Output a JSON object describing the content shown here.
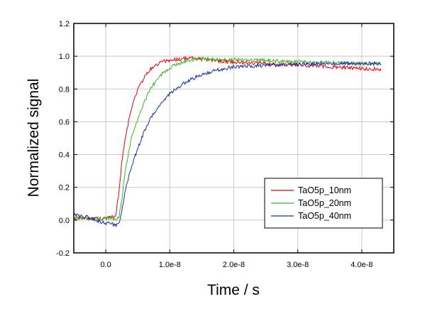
{
  "chart_data": {
    "type": "line",
    "xlabel": "Time / s",
    "ylabel": "Normalized signal",
    "xlim": [
      -5e-09,
      4.5e-08
    ],
    "ylim": [
      -0.2,
      1.2
    ],
    "xticks": [
      0,
      1e-08,
      2e-08,
      3e-08,
      4e-08
    ],
    "xtick_labels": [
      "0.0",
      "1.0e-8",
      "2.0e-8",
      "3.0e-8",
      "4.0e-8"
    ],
    "yticks": [
      -0.2,
      0.0,
      0.2,
      0.4,
      0.6,
      0.8,
      1.0,
      1.2
    ],
    "ytick_labels": [
      "-0.2",
      "0.0",
      "0.2",
      "0.4",
      "0.6",
      "0.8",
      "1.0",
      "1.2"
    ],
    "grid": true,
    "legend_position": "bottom-right",
    "series": [
      {
        "name": "TaO5p_10nm",
        "color": "#e8000b",
        "x": [
          -5e-09,
          0,
          1.5e-09,
          2e-09,
          2.5e-09,
          3e-09,
          4e-09,
          5e-09,
          6e-09,
          7e-09,
          8e-09,
          9e-09,
          1e-08,
          1.1e-08,
          1.2e-08,
          1.3e-08,
          1.5e-08,
          2e-08,
          2.5e-08,
          3e-08,
          3.5e-08,
          4e-08,
          4.3e-08
        ],
        "y": [
          0.01,
          0.01,
          0.02,
          0.15,
          0.35,
          0.5,
          0.68,
          0.8,
          0.87,
          0.92,
          0.95,
          0.97,
          0.975,
          0.98,
          0.985,
          0.99,
          0.98,
          0.965,
          0.955,
          0.945,
          0.935,
          0.925,
          0.92
        ]
      },
      {
        "name": "TaO5p_20nm",
        "color": "#3cb521",
        "x": [
          -5e-09,
          0,
          2e-09,
          2.5e-09,
          3e-09,
          4e-09,
          5e-09,
          6e-09,
          7e-09,
          8e-09,
          9e-09,
          1e-08,
          1.1e-08,
          1.2e-08,
          1.3e-08,
          1.5e-08,
          2e-08,
          2.5e-08,
          3e-08,
          3.5e-08,
          4e-08,
          4.3e-08
        ],
        "y": [
          0.01,
          0.01,
          0.01,
          0.12,
          0.3,
          0.5,
          0.62,
          0.72,
          0.8,
          0.86,
          0.9,
          0.93,
          0.95,
          0.965,
          0.975,
          0.985,
          0.98,
          0.975,
          0.965,
          0.96,
          0.955,
          0.955
        ]
      },
      {
        "name": "TaO5p_40nm",
        "color": "#1a2fa6",
        "x": [
          -5e-09,
          -3e-09,
          0,
          2e-09,
          2.5e-09,
          3e-09,
          4e-09,
          5e-09,
          6e-09,
          7e-09,
          8e-09,
          9e-09,
          1e-08,
          1.2e-08,
          1.4e-08,
          1.6e-08,
          1.8e-08,
          2e-08,
          2.5e-08,
          3e-08,
          3.5e-08,
          4e-08,
          4.3e-08
        ],
        "y": [
          0.03,
          0.02,
          -0.02,
          -0.03,
          0.05,
          0.18,
          0.32,
          0.44,
          0.54,
          0.62,
          0.68,
          0.73,
          0.77,
          0.83,
          0.87,
          0.9,
          0.92,
          0.935,
          0.945,
          0.95,
          0.955,
          0.955,
          0.955
        ]
      }
    ]
  }
}
